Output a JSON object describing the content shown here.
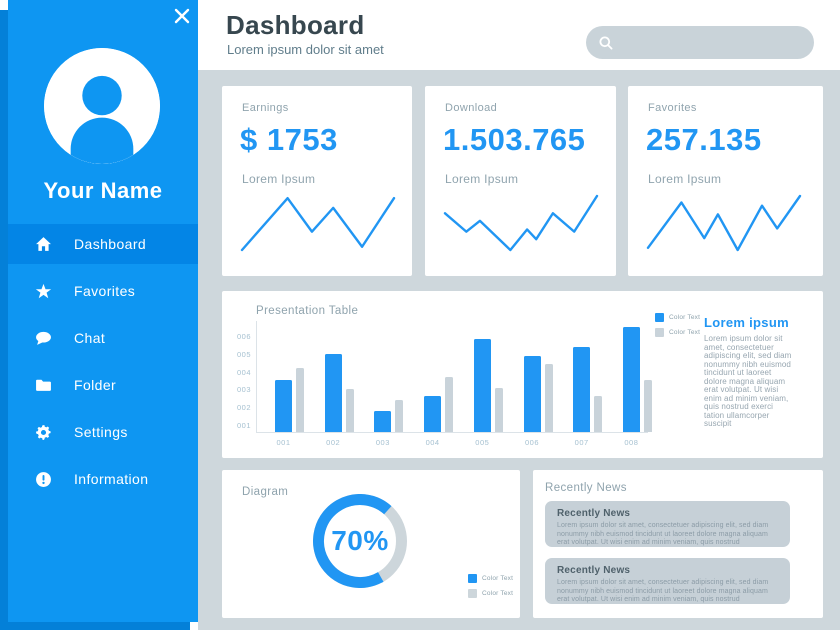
{
  "colors": {
    "accent": "#2196F3",
    "sidebar": "#0E96F2",
    "sidebar_active": "#0385E6",
    "sidebar_shadow": "#0480D8",
    "background": "#CED7DC",
    "gray_series": "#C9D3DA"
  },
  "header": {
    "title": "Dashboard",
    "subtitle": "Lorem ipsum dolor sit amet"
  },
  "search": {
    "value": "",
    "placeholder": ""
  },
  "sidebar": {
    "close_icon": "x",
    "name": "Your Name",
    "items": [
      {
        "label": "Dashboard",
        "icon": "home",
        "active": true
      },
      {
        "label": "Favorites",
        "icon": "star",
        "active": false
      },
      {
        "label": "Chat",
        "icon": "chat",
        "active": false
      },
      {
        "label": "Folder",
        "icon": "folder",
        "active": false
      },
      {
        "label": "Settings",
        "icon": "gear",
        "active": false
      },
      {
        "label": "Information",
        "icon": "info",
        "active": false
      }
    ]
  },
  "stat_cards": [
    {
      "label": "Earnings",
      "value": "$ 1753",
      "sub": "Lorem Ipsum"
    },
    {
      "label": "Download",
      "value": "1.503.765",
      "sub": "Lorem Ipsum"
    },
    {
      "label": "Favorites",
      "value": "257.135",
      "sub": "Lorem Ipsum"
    }
  ],
  "chart_data": [
    {
      "type": "line",
      "name": "Earnings trend",
      "color": "#2196F3",
      "points": [
        [
          0,
          50
        ],
        [
          30,
          2
        ],
        [
          46,
          33
        ],
        [
          60,
          11
        ],
        [
          79,
          47
        ],
        [
          100,
          2
        ]
      ]
    },
    {
      "type": "line",
      "name": "Download trend",
      "color": "#2196F3",
      "points": [
        [
          0,
          16
        ],
        [
          14,
          33
        ],
        [
          23,
          23
        ],
        [
          43,
          50
        ],
        [
          54,
          31
        ],
        [
          60,
          40
        ],
        [
          71,
          16
        ],
        [
          85,
          33
        ],
        [
          100,
          0
        ]
      ]
    },
    {
      "type": "line",
      "name": "Favorites trend",
      "color": "#2196F3",
      "points": [
        [
          0,
          48
        ],
        [
          22,
          6
        ],
        [
          37,
          39
        ],
        [
          46,
          17
        ],
        [
          59,
          50
        ],
        [
          75,
          9
        ],
        [
          85,
          30
        ],
        [
          100,
          0
        ]
      ]
    },
    {
      "type": "bar",
      "title": "Presentation Table",
      "categories": [
        "001",
        "002",
        "003",
        "004",
        "005",
        "006",
        "007",
        "008"
      ],
      "y_ticks": [
        "001",
        "002",
        "003",
        "004",
        "005",
        "006"
      ],
      "ylim": [
        0,
        6.5
      ],
      "legend_position": "top-right",
      "grid": false,
      "series": [
        {
          "name": "Color Text",
          "color": "#2196F3",
          "values": [
            3.5,
            5.0,
            1.8,
            2.6,
            5.8,
            4.9,
            5.4,
            6.5
          ]
        },
        {
          "name": "Color Text",
          "color": "#C9D3DA",
          "values": [
            4.2,
            3.0,
            2.4,
            3.7,
            3.1,
            4.4,
            2.6,
            3.5
          ]
        }
      ]
    },
    {
      "type": "donut",
      "title": "Diagram",
      "value": 70,
      "label": "70%",
      "segments": [
        {
          "name": "Color Text",
          "value": 70,
          "color": "#2196F3"
        },
        {
          "name": "Color Text",
          "value": 30,
          "color": "#CDD6DB"
        }
      ]
    }
  ],
  "presentation": {
    "side_heading": "Lorem ipsum",
    "side_text": "Lorem ipsum dolor sit amet, consectetuer adipiscing elit, sed diam nonummy nibh euismod tincidunt ut laoreet dolore magna aliquam erat volutpat. Ut wisi enim ad minim veniam, quis nostrud exerci tation ullamcorper suscipit"
  },
  "news": {
    "title": "Recently News",
    "items": [
      {
        "heading": "Recently News",
        "text": "Lorem ipsum dolor sit amet, consectetuer adipiscing elit, sed diam nonummy nibh euismod tincidunt ut laoreet dolore magna aliquam erat volutpat. Ut wisi enim ad minim veniam, quis nostrud"
      },
      {
        "heading": "Recently News",
        "text": "Lorem ipsum dolor sit amet, consectetuer adipiscing elit, sed diam nonummy nibh euismod tincidunt ut laoreet dolore magna aliquam erat volutpat. Ut wisi enim ad minim veniam, quis nostrud"
      }
    ]
  }
}
